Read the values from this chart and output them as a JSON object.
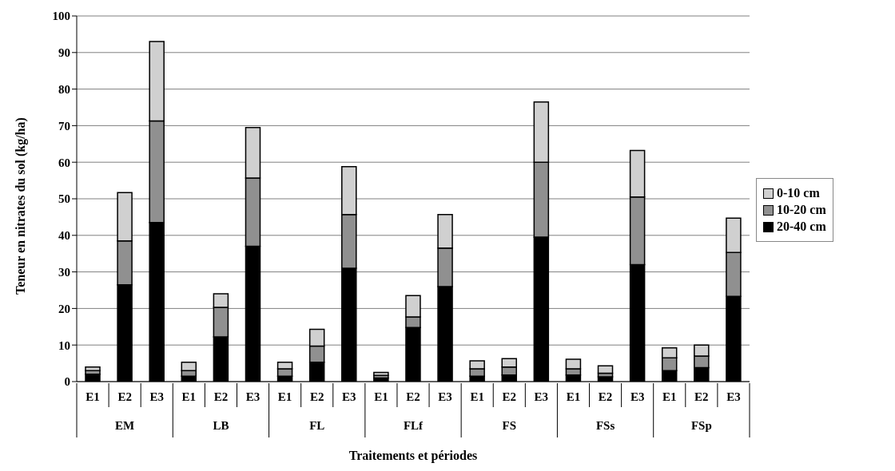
{
  "chart_data": {
    "type": "bar",
    "stacked": true,
    "xlabel": "Traitements et périodes",
    "ylabel": "Teneur en nitrates du sol (kg/ha)",
    "categories": [
      "E1",
      "E2",
      "E3",
      "E1",
      "E2",
      "E3",
      "E1",
      "E2",
      "E3",
      "E1",
      "E2",
      "E3",
      "E1",
      "E2",
      "E3",
      "E1",
      "E2",
      "E3",
      "E1",
      "E2",
      "E3"
    ],
    "annotations": [
      "EM",
      "LB",
      "FL",
      "FLf",
      "FS",
      "FSs",
      "FSp"
    ],
    "series": [
      {
        "name": "20-40 cm",
        "color": "#000000",
        "values": [
          2,
          26.5,
          43.5,
          1.5,
          12.2,
          37,
          1.5,
          5.3,
          31,
          1,
          14.8,
          26,
          1.5,
          1.8,
          39.5,
          1.8,
          1.3,
          32,
          3,
          3.8,
          23.3
        ]
      },
      {
        "name": "10-20 cm",
        "color": "#909090",
        "values": [
          1,
          12,
          27.8,
          1.5,
          8.1,
          18.7,
          2,
          4.4,
          14.7,
          0.7,
          2.9,
          10.5,
          2,
          2.2,
          20.5,
          1.7,
          1,
          18.5,
          3.5,
          3.2,
          12
        ]
      },
      {
        "name": "0-10 cm",
        "color": "#d0d0d0",
        "values": [
          1,
          13.2,
          21.7,
          2.3,
          3.7,
          13.8,
          1.8,
          4.6,
          13.1,
          0.8,
          5.8,
          9.2,
          2.2,
          2.3,
          16.5,
          2.6,
          2,
          12.7,
          2.7,
          3,
          9.4
        ]
      }
    ],
    "ylim": [
      0,
      100
    ],
    "yticks": [
      0,
      10,
      20,
      30,
      40,
      50,
      60,
      70,
      80,
      90,
      100
    ],
    "grid": "y",
    "legend": "right"
  }
}
